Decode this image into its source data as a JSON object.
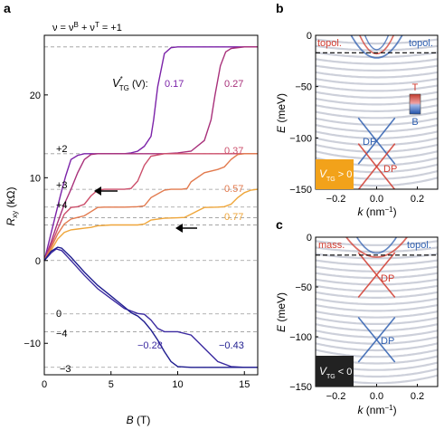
{
  "colors": {
    "purple_dark": "#5a1a9e",
    "purple": "#7b22a8",
    "magenta": "#a8307a",
    "rose": "#cc4f6b",
    "coral": "#e27a4e",
    "orange": "#efa63a",
    "indigo": "#3b2aa0",
    "navy": "#1f1d8f",
    "dashed": "#9a9a9a",
    "topol_red": "#d13b2f",
    "topol_blue": "#2f5fb0",
    "band_gray": "#c8cbd6",
    "inset_bg_orange": "#f2a21a",
    "inset_bg_black": "#222222"
  },
  "chart_data": [
    {
      "panel": "a",
      "type": "line",
      "xlabel": "B (T)",
      "ylabel": "R_xy (kΩ)",
      "xlim": [
        0,
        16
      ],
      "ylim": [
        -13.8,
        27.2
      ],
      "x_ticks": [
        0,
        5,
        10,
        15
      ],
      "y_ticks": [
        -10,
        0,
        10,
        20
      ],
      "top_label": "ν = ν^B + ν^T = +1",
      "legend_title": "V*_TG (V):",
      "plateaus": [
        {
          "label": "+1",
          "value": 25.8,
          "printed": false
        },
        {
          "label": "+2",
          "value": 12.9,
          "printed": true
        },
        {
          "label": "+3",
          "value": 8.6,
          "printed": true
        },
        {
          "label": "+4",
          "value": 6.45,
          "printed": true
        },
        {
          "label": "+5",
          "value": 5.16,
          "printed": false
        },
        {
          "label": "+6",
          "value": 4.3,
          "printed": false
        },
        {
          "label": "0",
          "value": 0,
          "printed": false
        },
        {
          "label": "−4",
          "value": -6.45,
          "printed": true
        },
        {
          "label": "−3",
          "value": -8.6,
          "printed": true
        },
        {
          "label": "−2",
          "value": -12.9,
          "printed": true
        }
      ],
      "series": [
        {
          "name": "0.17",
          "color_key": "purple",
          "x": [
            0,
            0.4,
            0.8,
            1.2,
            1.6,
            2,
            2.5,
            3,
            3.5,
            4,
            4.5,
            5,
            5.5,
            6,
            6.5,
            7,
            7.5,
            8,
            8.2,
            8.5,
            9,
            9.5,
            10,
            11,
            12,
            13,
            14,
            15,
            16
          ],
          "y": [
            0,
            2.6,
            5.2,
            7.8,
            10.2,
            12.2,
            12.7,
            12.9,
            12.9,
            12.9,
            12.9,
            12.9,
            12.9,
            12.9,
            13.0,
            13.2,
            13.8,
            15,
            17,
            21,
            25.0,
            25.7,
            25.8,
            25.8,
            25.8,
            25.8,
            25.8,
            25.8,
            25.8
          ]
        },
        {
          "name": "0.27",
          "color_key": "magenta",
          "x": [
            0,
            0.5,
            1,
            1.5,
            2,
            2.5,
            3,
            3.5,
            4,
            5,
            6,
            7,
            8,
            9,
            10,
            11,
            12,
            12.5,
            12.8,
            13.2,
            13.6,
            14,
            15,
            16
          ],
          "y": [
            0,
            2.2,
            4.6,
            6.8,
            8.6,
            10.6,
            12.2,
            12.8,
            12.9,
            12.9,
            12.9,
            12.9,
            12.9,
            12.9,
            13.0,
            13.2,
            14.5,
            17,
            20,
            23.5,
            25.2,
            25.6,
            25.8,
            25.8
          ]
        },
        {
          "name": "0.37",
          "color_key": "rose",
          "x": [
            0,
            0.5,
            1,
            1.5,
            2,
            2.5,
            3,
            3.5,
            4,
            4.5,
            5,
            5.5,
            6,
            6.5,
            7,
            7.5,
            8,
            9,
            10,
            11,
            11.5,
            12,
            13,
            14,
            15,
            16
          ],
          "y": [
            0,
            1.8,
            3.8,
            5.6,
            6.4,
            6.5,
            6.8,
            7.8,
            8.5,
            8.6,
            8.6,
            8.6,
            8.6,
            8.7,
            9.6,
            11.5,
            12.6,
            12.9,
            12.9,
            12.9,
            12.9,
            12.9,
            12.9,
            12.9,
            12.9,
            12.9
          ]
        },
        {
          "name": "0.57",
          "color_key": "coral",
          "x": [
            0,
            0.5,
            1,
            1.5,
            2,
            2.5,
            3,
            3.5,
            4,
            4.5,
            5,
            6,
            7,
            7.5,
            8,
            9,
            9.5,
            10,
            10.3,
            10.7,
            11,
            12,
            13,
            13.5,
            14,
            14.5,
            15,
            16
          ],
          "y": [
            0,
            1.5,
            3.2,
            4.4,
            5.0,
            5.2,
            5.4,
            5.9,
            6.4,
            6.45,
            6.45,
            6.45,
            6.5,
            6.6,
            7.6,
            8.5,
            8.6,
            8.6,
            8.6,
            8.7,
            9.5,
            10.6,
            11.0,
            11.3,
            12.2,
            12.8,
            12.9,
            12.9
          ]
        },
        {
          "name": "0.77",
          "color_key": "orange",
          "x": [
            0,
            0.5,
            1,
            1.5,
            2,
            2.5,
            3,
            3.5,
            4,
            5,
            6,
            7,
            7.5,
            8,
            9,
            10,
            10.5,
            11,
            11.5,
            12,
            13,
            13.5,
            14,
            14.5,
            15,
            15.5,
            16
          ],
          "y": [
            0,
            1.2,
            2.6,
            3.4,
            3.7,
            3.8,
            3.9,
            4.0,
            4.2,
            4.3,
            4.3,
            4.3,
            4.4,
            4.9,
            5.1,
            5.16,
            5.2,
            5.6,
            6.0,
            6.4,
            6.45,
            6.5,
            6.8,
            7.6,
            8.2,
            8.5,
            8.6
          ]
        },
        {
          "name": "−0.28",
          "color_key": "indigo",
          "x": [
            0,
            0.5,
            0.9,
            1.3,
            2,
            3,
            4,
            5,
            6,
            7,
            7.5,
            8,
            8.5,
            9,
            9.5,
            10,
            11,
            12,
            13,
            14,
            15,
            16
          ],
          "y": [
            0,
            0.9,
            1.4,
            1.2,
            0,
            -1.8,
            -3.4,
            -4.6,
            -5.8,
            -6.4,
            -6.5,
            -7.2,
            -8.2,
            -8.6,
            -8.6,
            -8.6,
            -9.0,
            -10.6,
            -12.2,
            -12.8,
            -12.9,
            -12.9
          ]
        },
        {
          "name": "−0.43",
          "color_key": "navy",
          "x": [
            0,
            0.5,
            1,
            1.3,
            2,
            3,
            4,
            5,
            6,
            6.5,
            7,
            7.5,
            8,
            8.5,
            9,
            9.5,
            10,
            11,
            12,
            12.5,
            13,
            13.5,
            14,
            15,
            16
          ],
          "y": [
            0,
            1.1,
            1.6,
            1.5,
            0.4,
            -1.4,
            -3.0,
            -4.3,
            -5.6,
            -6.3,
            -6.7,
            -7.4,
            -8.4,
            -9.6,
            -11.0,
            -12.2,
            -12.8,
            -12.9,
            -12.9,
            -12.9,
            -12.9,
            -12.9,
            -12.9,
            -12.9,
            -12.9
          ]
        }
      ]
    },
    {
      "panel": "b",
      "type": "line",
      "xlabel": "k (nm⁻¹)",
      "ylabel": "E (meV)",
      "xlim": [
        -0.3,
        0.3
      ],
      "ylim": [
        -150,
        0
      ],
      "x_ticks": [
        -0.2,
        0.0,
        0.2
      ],
      "y_ticks": [
        -150,
        -100,
        -50,
        0
      ],
      "fermi_level_meV": -17,
      "annotations": [
        "topol.",
        "topol.",
        "DP",
        "DP"
      ],
      "colorbar": {
        "top": "T",
        "bottom": "B"
      },
      "inset": "V*_TG > 0"
    },
    {
      "panel": "c",
      "type": "line",
      "xlabel": "k (nm⁻¹)",
      "ylabel": "E (meV)",
      "xlim": [
        -0.3,
        0.3
      ],
      "ylim": [
        -150,
        0
      ],
      "x_ticks": [
        -0.2,
        0.0,
        0.2
      ],
      "y_ticks": [
        -150,
        -100,
        -50,
        0
      ],
      "fermi_level_meV": -18,
      "annotations": [
        "mass.",
        "topol.",
        "DP",
        "DP"
      ],
      "inset": "V*_TG < 0"
    }
  ],
  "labels": {
    "panel_a": "a",
    "panel_b": "b",
    "panel_c": "c",
    "top_nu": "ν = ν",
    "top_nu_B": "B",
    "top_plus": " + ν",
    "top_nu_T": "T",
    "top_eq": " = +1",
    "legend_V": "V",
    "legend_sup": "*",
    "legend_sub": "TG",
    "legend_unit": " (V):",
    "x_a_B": "B",
    "x_a_unit": " (T)",
    "y_a_R": "R",
    "y_a_sub": "xy",
    "y_a_unit": " (kΩ)",
    "y_E": "E",
    "y_E_unit": " (meV)",
    "x_k": "k",
    "x_k_unit": " (nm",
    "x_k_exp": "−1",
    "x_k_close": ")",
    "b_topol_left": "topol.",
    "b_topol_right": "topol.",
    "b_dp_blue": "DP",
    "b_dp_red": "DP",
    "b_cbar_top": "T",
    "b_cbar_bottom": "B",
    "b_inset_V": "V",
    "b_inset_sub": "TG",
    "b_inset_rel": " > 0",
    "c_mass": "mass.",
    "c_topol": "topol.",
    "c_dp_red": "DP",
    "c_dp_blue": "DP",
    "c_inset_V": "V",
    "c_inset_sub": "TG",
    "c_inset_rel": " < 0"
  }
}
